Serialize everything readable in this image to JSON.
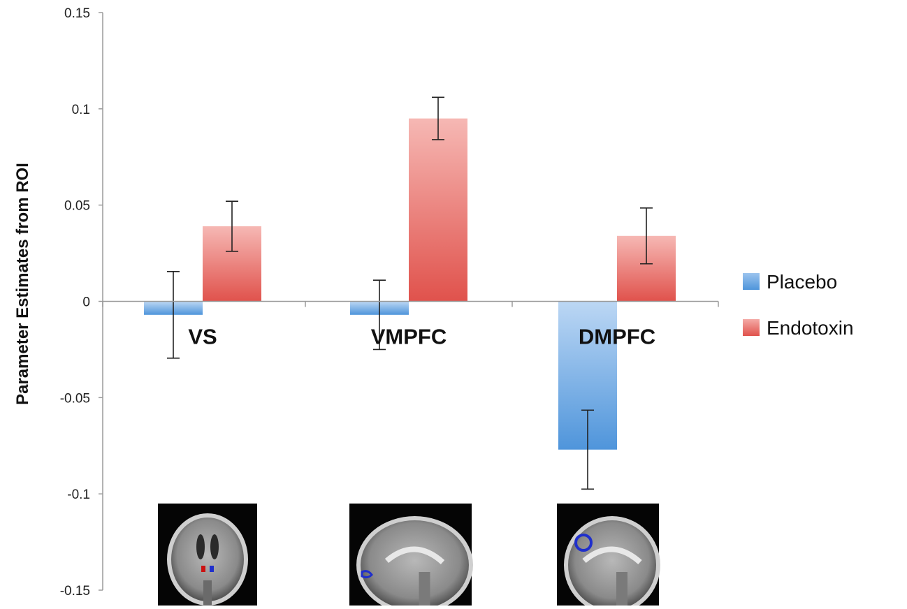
{
  "chart_data": {
    "type": "bar",
    "title": "",
    "xlabel": "",
    "ylabel": "Parameter Estimates from ROI",
    "ylim": [
      -0.15,
      0.15
    ],
    "yticks": [
      0.15,
      0.1,
      0.05,
      0,
      -0.05,
      -0.1,
      -0.15
    ],
    "ytick_labels": [
      "0.15",
      "0.1",
      "0.05",
      "0",
      "-0.05",
      "-0.1",
      "-0.15"
    ],
    "categories": [
      "VS",
      "VMPFC",
      "DMPFC"
    ],
    "series": [
      {
        "name": "Placebo",
        "color": "#4f95db",
        "values": [
          -0.007,
          -0.007,
          -0.077
        ],
        "error": [
          0.0225,
          0.018,
          0.0205
        ]
      },
      {
        "name": "Endotoxin",
        "color": "#e0524c",
        "values": [
          0.039,
          0.095,
          0.034
        ],
        "error": [
          0.013,
          0.011,
          0.0145
        ]
      }
    ],
    "legend_position": "right",
    "grid": false,
    "brain_images": [
      {
        "name": "VS",
        "view": "coronal"
      },
      {
        "name": "VMPFC",
        "view": "sagittal"
      },
      {
        "name": "DMPFC",
        "view": "sagittal"
      }
    ]
  }
}
